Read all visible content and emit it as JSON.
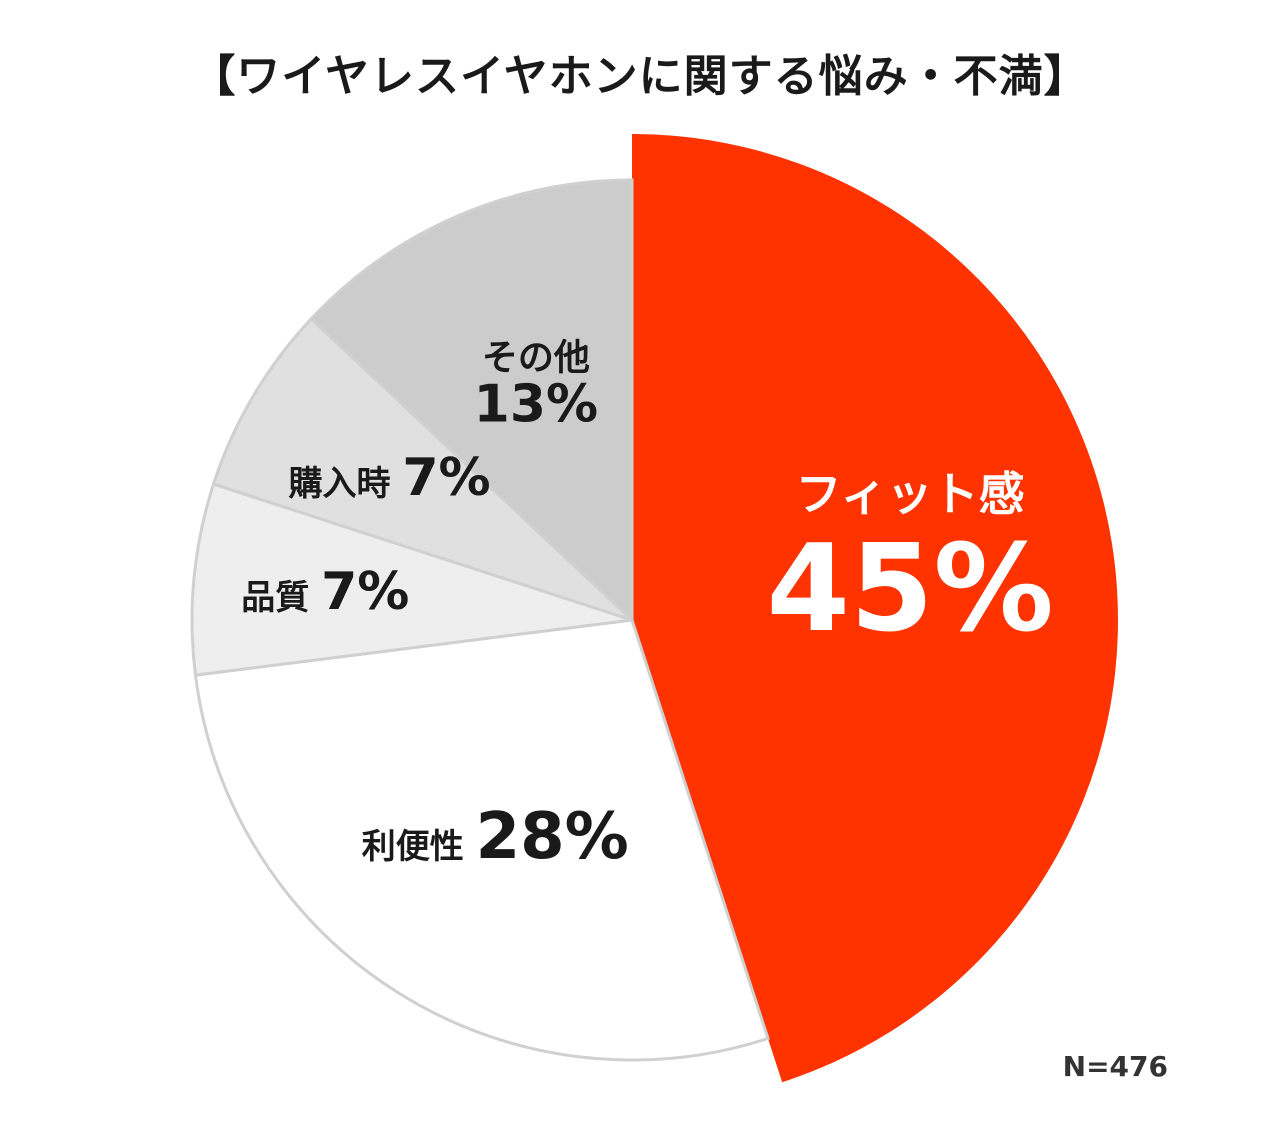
{
  "chart_data": {
    "type": "pie",
    "title": "【ワイヤレスイヤホンに関する悩み・不満】",
    "note": "N=476",
    "slices": [
      {
        "label": "フィット感",
        "value": 45,
        "value_text": "45%",
        "color": "#ff3300",
        "text_color": "#ffffff",
        "exploded": true
      },
      {
        "label": "利便性",
        "value": 28,
        "value_text": "28%",
        "color": "#ffffff",
        "text_color": "#1a1a1a",
        "exploded": false
      },
      {
        "label": "品質",
        "value": 7,
        "value_text": "7%",
        "color": "#eeeeee",
        "text_color": "#1a1a1a",
        "exploded": false
      },
      {
        "label": "購入時",
        "value": 7,
        "value_text": "7%",
        "color": "#e0e0e0",
        "text_color": "#1a1a1a",
        "exploded": false
      },
      {
        "label": "その他",
        "value": 13,
        "value_text": "13%",
        "color": "#cccccc",
        "text_color": "#1a1a1a",
        "exploded": false
      }
    ],
    "outline_color": "#d0d0d0"
  }
}
